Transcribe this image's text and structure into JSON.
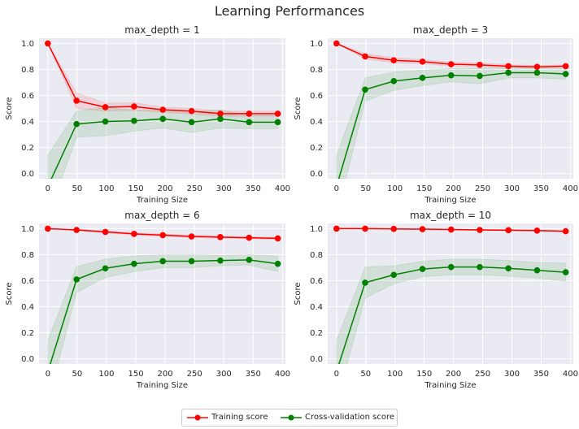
{
  "figure": {
    "title": "Learning Performances"
  },
  "colors": {
    "training": "#ff0000",
    "validation": "#008000",
    "axes_bg": "#eaeaf2",
    "grid": "#ffffff",
    "text": "#262626"
  },
  "legend": {
    "position": "bottom-center",
    "items": [
      "Training score",
      "Cross-validation score"
    ]
  },
  "chart_data": [
    {
      "type": "line",
      "title": "max_depth = 1",
      "xlabel": "Training Size",
      "ylabel": "Score",
      "xlim": [
        -15,
        405
      ],
      "ylim": [
        -0.04,
        1.04
      ],
      "xticks": [
        0,
        50,
        100,
        150,
        200,
        250,
        300,
        350,
        400
      ],
      "yticks": [
        0.0,
        0.2,
        0.4,
        0.6,
        0.8,
        1.0
      ],
      "x": [
        0,
        49,
        98,
        147,
        196,
        245,
        294,
        343,
        392
      ],
      "grid": true,
      "series": [
        {
          "name": "Training score",
          "values": [
            1.0,
            0.56,
            0.51,
            0.515,
            0.49,
            0.48,
            0.46,
            0.46,
            0.46
          ],
          "band": [
            0.0,
            0.06,
            0.03,
            0.03,
            0.02,
            0.02,
            0.02,
            0.02,
            0.02
          ]
        },
        {
          "name": "Cross-validation score",
          "values": [
            -0.1,
            0.38,
            0.4,
            0.405,
            0.42,
            0.395,
            0.42,
            0.395,
            0.395
          ],
          "band": [
            0.24,
            0.1,
            0.11,
            0.08,
            0.07,
            0.08,
            0.07,
            0.05,
            0.05
          ]
        }
      ]
    },
    {
      "type": "line",
      "title": "max_depth = 3",
      "xlabel": "Training Size",
      "ylabel": "Score",
      "xlim": [
        -15,
        405
      ],
      "ylim": [
        -0.04,
        1.04
      ],
      "xticks": [
        0,
        50,
        100,
        150,
        200,
        250,
        300,
        350,
        400
      ],
      "yticks": [
        0.0,
        0.2,
        0.4,
        0.6,
        0.8,
        1.0
      ],
      "x": [
        0,
        49,
        98,
        147,
        196,
        245,
        294,
        343,
        392
      ],
      "grid": true,
      "series": [
        {
          "name": "Training score",
          "values": [
            1.0,
            0.9,
            0.87,
            0.86,
            0.84,
            0.835,
            0.825,
            0.82,
            0.825
          ],
          "band": [
            0.0,
            0.02,
            0.02,
            0.015,
            0.015,
            0.015,
            0.012,
            0.01,
            0.01
          ]
        },
        {
          "name": "Cross-validation score",
          "values": [
            -0.1,
            0.645,
            0.71,
            0.735,
            0.755,
            0.75,
            0.775,
            0.775,
            0.765
          ],
          "band": [
            0.24,
            0.09,
            0.07,
            0.06,
            0.05,
            0.06,
            0.04,
            0.04,
            0.04
          ]
        }
      ]
    },
    {
      "type": "line",
      "title": "max_depth = 6",
      "xlabel": "Training Size",
      "ylabel": "Score",
      "xlim": [
        -15,
        405
      ],
      "ylim": [
        -0.04,
        1.04
      ],
      "xticks": [
        0,
        50,
        100,
        150,
        200,
        250,
        300,
        350,
        400
      ],
      "yticks": [
        0.0,
        0.2,
        0.4,
        0.6,
        0.8,
        1.0
      ],
      "x": [
        0,
        49,
        98,
        147,
        196,
        245,
        294,
        343,
        392
      ],
      "grid": true,
      "series": [
        {
          "name": "Training score",
          "values": [
            1.0,
            0.99,
            0.975,
            0.96,
            0.95,
            0.94,
            0.935,
            0.93,
            0.925
          ],
          "band": [
            0.0,
            0.005,
            0.008,
            0.008,
            0.01,
            0.008,
            0.008,
            0.008,
            0.008
          ]
        },
        {
          "name": "Cross-validation score",
          "values": [
            -0.1,
            0.61,
            0.695,
            0.73,
            0.75,
            0.75,
            0.755,
            0.76,
            0.73
          ],
          "band": [
            0.24,
            0.1,
            0.07,
            0.06,
            0.05,
            0.05,
            0.04,
            0.04,
            0.06
          ]
        }
      ]
    },
    {
      "type": "line",
      "title": "max_depth = 10",
      "xlabel": "Training Size",
      "ylabel": "Score",
      "xlim": [
        -15,
        405
      ],
      "ylim": [
        -0.04,
        1.04
      ],
      "xticks": [
        0,
        50,
        100,
        150,
        200,
        250,
        300,
        350,
        400
      ],
      "yticks": [
        0.0,
        0.2,
        0.4,
        0.6,
        0.8,
        1.0
      ],
      "x": [
        0,
        49,
        98,
        147,
        196,
        245,
        294,
        343,
        392
      ],
      "grid": true,
      "series": [
        {
          "name": "Training score",
          "values": [
            1.0,
            1.0,
            0.998,
            0.996,
            0.993,
            0.99,
            0.988,
            0.985,
            0.98
          ],
          "band": [
            0.0,
            0.002,
            0.002,
            0.003,
            0.004,
            0.004,
            0.004,
            0.005,
            0.005
          ]
        },
        {
          "name": "Cross-validation score",
          "values": [
            -0.1,
            0.585,
            0.645,
            0.69,
            0.705,
            0.705,
            0.695,
            0.68,
            0.665
          ],
          "band": [
            0.24,
            0.12,
            0.07,
            0.06,
            0.06,
            0.06,
            0.06,
            0.06,
            0.07
          ]
        }
      ]
    }
  ]
}
